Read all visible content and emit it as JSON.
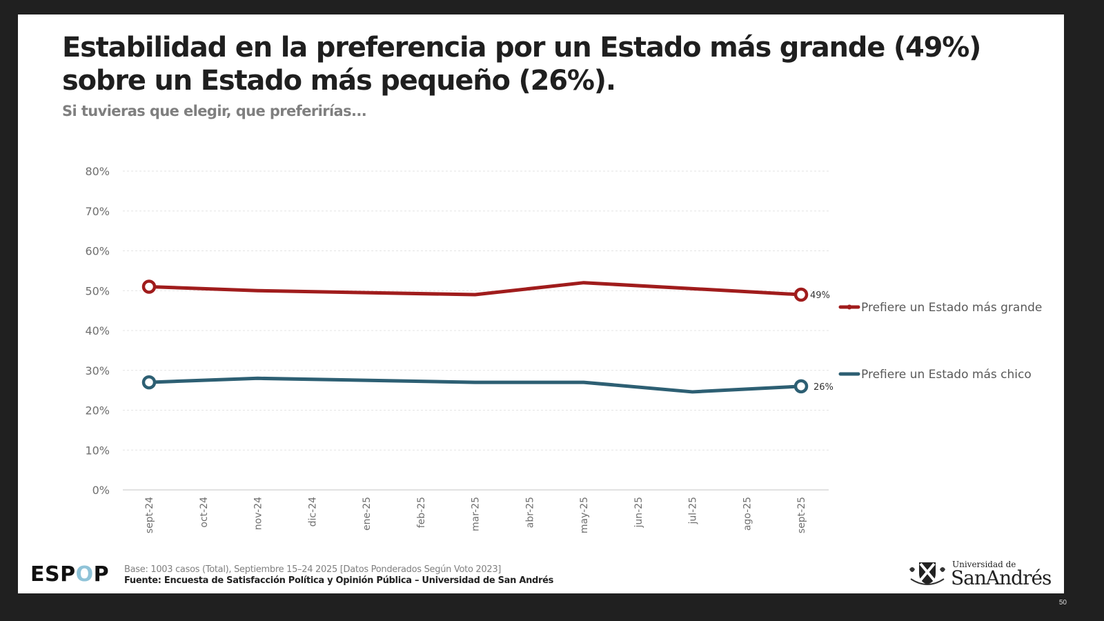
{
  "slide": {
    "title": "Estabilidad en la preferencia por un Estado más grande (49%) sobre un Estado más pequeño (26%).",
    "subtitle": "Si tuvieras que elegir, que preferirías...",
    "footer": {
      "logo_prefix": "ESP",
      "logo_o": "O",
      "logo_suffix": "P",
      "base": "Base: 1003 casos (Total), Septiembre 15–24 2025 [Datos Ponderados Según Voto 2023]",
      "source": "Fuente: Encuesta de Satisfacción Política y Opinión Pública – Universidad de San Andrés"
    },
    "university": {
      "small": "Universidad de",
      "big": "SanAndrés",
      "icon": "shield-crest-icon"
    },
    "page_number": "50"
  },
  "chart_data": {
    "type": "line",
    "title": "Estabilidad en la preferencia por un Estado más grande (49%) sobre un Estado más pequeño (26%).",
    "subtitle": "Si tuvieras que elegir, que preferirías...",
    "xlabel": "",
    "ylabel": "",
    "ylim": [
      0,
      80
    ],
    "yticks": [
      0,
      10,
      20,
      30,
      40,
      50,
      60,
      70,
      80
    ],
    "ytick_labels": [
      "0%",
      "10%",
      "20%",
      "30%",
      "40%",
      "50%",
      "60%",
      "70%",
      "80%"
    ],
    "grid": true,
    "legend_position": "right",
    "categories": [
      "sept-24",
      "oct-24",
      "nov-24",
      "dic-24",
      "ene-25",
      "feb-25",
      "mar-25",
      "abr-25",
      "may-25",
      "jun-25",
      "jul-25",
      "ago-25",
      "sept-25"
    ],
    "series": [
      {
        "name": "Prefiere un Estado más grande",
        "color": "#a01c1c",
        "points": [
          {
            "x": "sept-24",
            "y": 51
          },
          {
            "x": "nov-24",
            "y": 50
          },
          {
            "x": "mar-25",
            "y": 49
          },
          {
            "x": "may-25",
            "y": 52
          },
          {
            "x": "jul-25",
            "y": 50.5
          },
          {
            "x": "sept-25",
            "y": 49
          }
        ],
        "end_label": "49%"
      },
      {
        "name": "Prefiere un Estado más chico",
        "color": "#2d5f73",
        "points": [
          {
            "x": "sept-24",
            "y": 27
          },
          {
            "x": "nov-24",
            "y": 28
          },
          {
            "x": "mar-25",
            "y": 27
          },
          {
            "x": "may-25",
            "y": 27
          },
          {
            "x": "jul-25",
            "y": 24.6
          },
          {
            "x": "sept-25",
            "y": 26
          }
        ],
        "end_label": "26%"
      }
    ]
  }
}
